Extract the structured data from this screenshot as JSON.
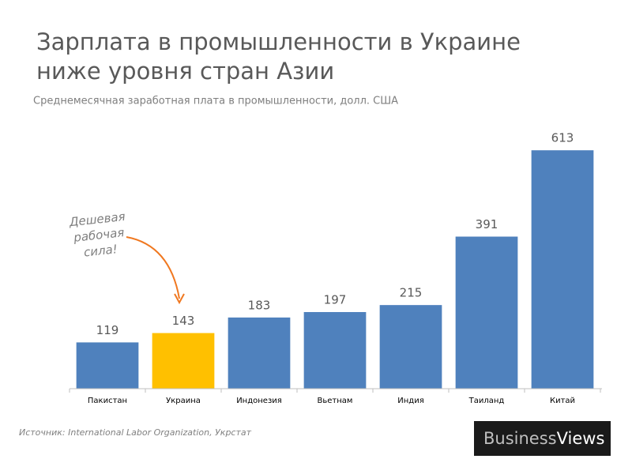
{
  "chart_data": {
    "type": "bar",
    "title": [
      "Зарплата в промышленности в Украине",
      "ниже уровня стран Азии"
    ],
    "subtitle": "Среднемесячная заработная плата в промышленности, долл. США",
    "categories": [
      "Пакистан",
      "Украина",
      "Индонезия",
      "Вьетнам",
      "Индия",
      "Таиланд",
      "Китай"
    ],
    "values": [
      119,
      143,
      183,
      197,
      215,
      391,
      613
    ],
    "colors": [
      "#4f81bd",
      "#ffc000",
      "#4f81bd",
      "#4f81bd",
      "#4f81bd",
      "#4f81bd",
      "#4f81bd"
    ],
    "ylim": [
      0,
      650
    ],
    "annotation": [
      "Дешевая",
      "рабочая",
      "сила!"
    ],
    "source": "Источник: International Labor Organization, Укрстат",
    "logo": [
      "Business",
      "Views"
    ]
  }
}
